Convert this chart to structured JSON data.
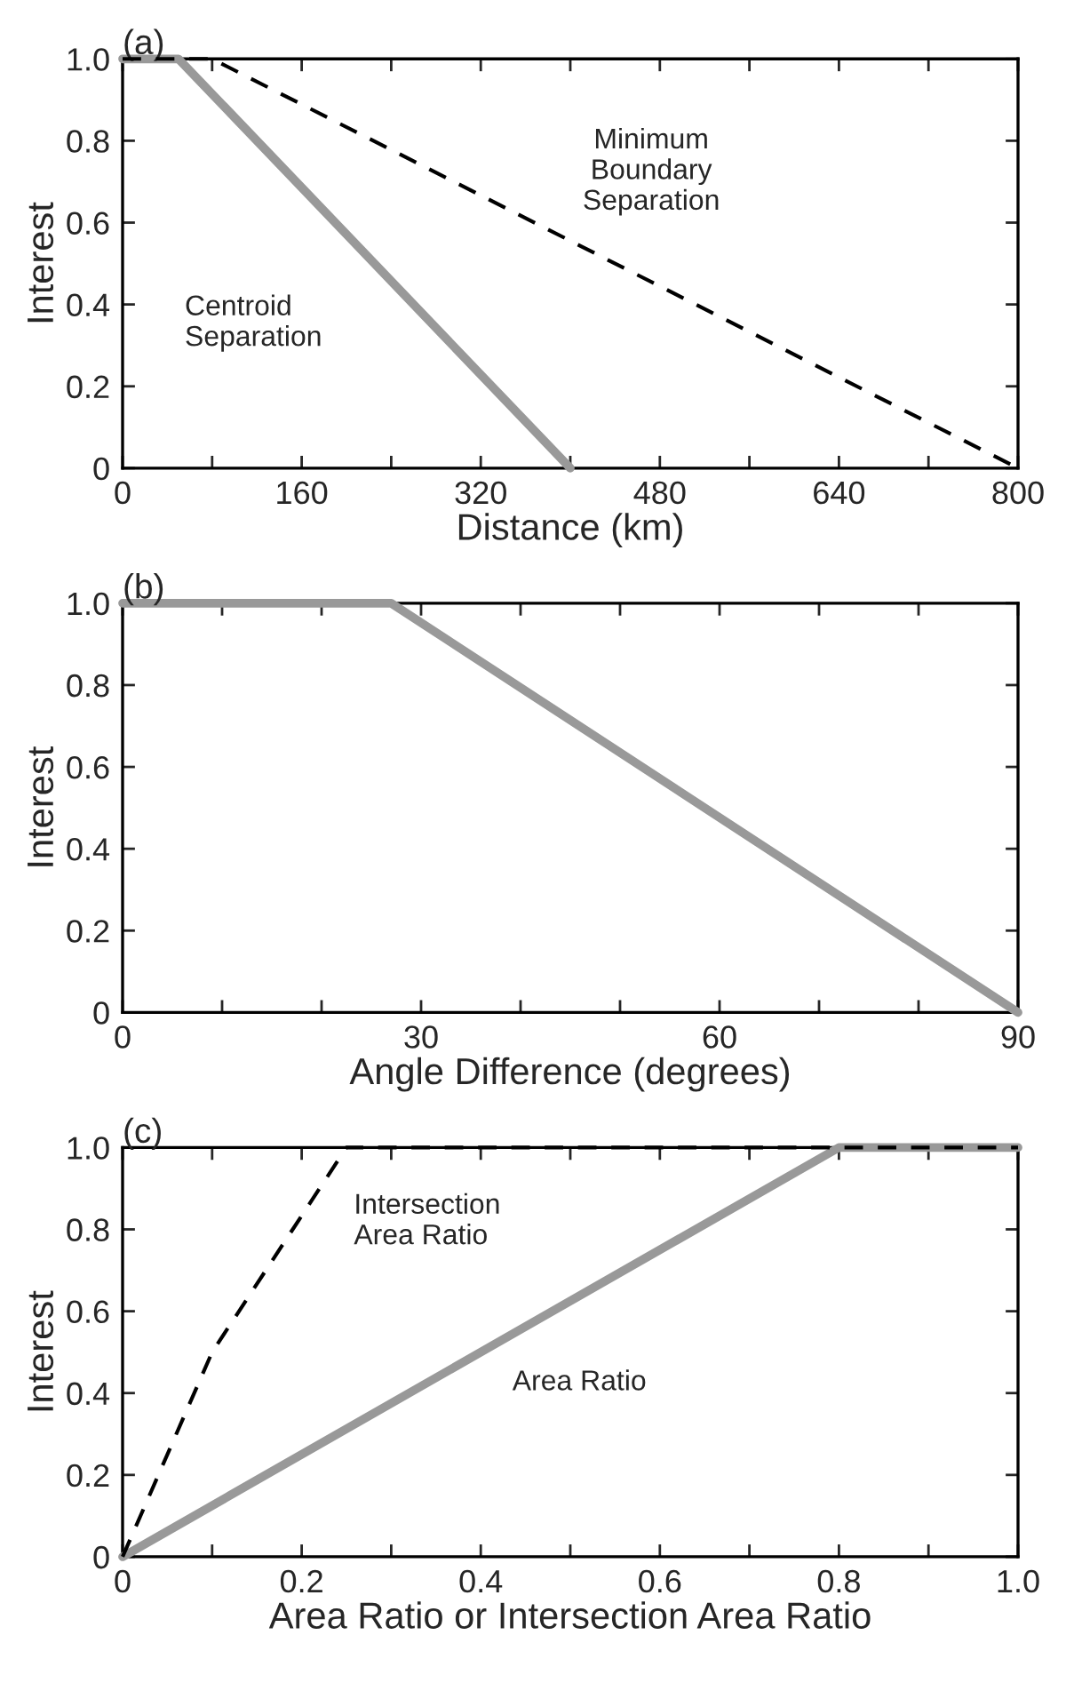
{
  "chart_data": [
    {
      "type": "line",
      "title": "(a)",
      "xlabel": "Distance (km)",
      "ylabel": "Interest",
      "xlim": [
        0,
        800
      ],
      "ylim": [
        0,
        1.0
      ],
      "xticks": [
        0,
        {
          "value": 80,
          "label": null
        },
        160,
        {
          "value": 240,
          "label": null
        },
        320,
        {
          "value": 400,
          "label": null
        },
        480,
        {
          "value": 560,
          "label": null
        },
        640,
        {
          "value": 720,
          "label": null
        },
        800
      ],
      "yticks": [
        0,
        {
          "value": 0.2,
          "label": "0.2"
        },
        {
          "value": 0.4,
          "label": "0.4"
        },
        {
          "value": 0.6,
          "label": "0.6"
        },
        {
          "value": 0.8,
          "label": "0.8"
        },
        {
          "value": 1.0,
          "label": "1.0"
        }
      ],
      "grid": false,
      "marker": "none",
      "series": [
        {
          "name": "Centroid\nSeparation",
          "color": "#999999",
          "line_style": "solid",
          "x": [
            0,
            50,
            400
          ],
          "values": [
            1.0,
            1.0,
            0
          ]
        },
        {
          "name": "Minimum\nBoundary\nSeparation",
          "color": "#000000",
          "line_style": "dashed",
          "x": [
            0,
            80,
            800
          ],
          "values": [
            1.0,
            1.0,
            0
          ]
        }
      ]
    },
    {
      "type": "line",
      "title": "(b)",
      "xlabel": "Angle Difference (degrees)",
      "ylabel": "Interest",
      "xlim": [
        0,
        90
      ],
      "ylim": [
        0,
        1.0
      ],
      "xticks": [
        0,
        {
          "value": 10,
          "label": null
        },
        {
          "value": 20,
          "label": null
        },
        30,
        {
          "value": 40,
          "label": null
        },
        {
          "value": 50,
          "label": null
        },
        60,
        {
          "value": 70,
          "label": null
        },
        {
          "value": 80,
          "label": null
        },
        90
      ],
      "yticks": [
        0,
        {
          "value": 0.2,
          "label": "0.2"
        },
        {
          "value": 0.4,
          "label": "0.4"
        },
        {
          "value": 0.6,
          "label": "0.6"
        },
        {
          "value": 0.8,
          "label": "0.8"
        },
        {
          "value": 1.0,
          "label": "1.0"
        }
      ],
      "grid": false,
      "marker": "none",
      "series": [
        {
          "color": "#999999",
          "line_style": "solid",
          "x": [
            0,
            27,
            90
          ],
          "values": [
            1.0,
            1.0,
            0
          ]
        }
      ]
    },
    {
      "type": "line",
      "title": "(c)",
      "xlabel": "Area Ratio or Intersection Area Ratio",
      "ylabel": "Interest",
      "xlim": [
        0,
        1.0
      ],
      "ylim": [
        0,
        1.0
      ],
      "xticks": [
        0,
        {
          "value": 0.1,
          "label": null
        },
        {
          "value": 0.2,
          "label": "0.2"
        },
        {
          "value": 0.3,
          "label": null
        },
        {
          "value": 0.4,
          "label": "0.4"
        },
        {
          "value": 0.5,
          "label": null
        },
        {
          "value": 0.6,
          "label": "0.6"
        },
        {
          "value": 0.7,
          "label": null
        },
        {
          "value": 0.8,
          "label": "0.8"
        },
        {
          "value": 0.9,
          "label": null
        },
        {
          "value": 1.0,
          "label": "1.0"
        }
      ],
      "yticks": [
        0,
        {
          "value": 0.2,
          "label": "0.2"
        },
        {
          "value": 0.4,
          "label": "0.4"
        },
        {
          "value": 0.6,
          "label": "0.6"
        },
        {
          "value": 0.8,
          "label": "0.8"
        },
        {
          "value": 1.0,
          "label": "1.0"
        }
      ],
      "grid": false,
      "marker": "none",
      "series": [
        {
          "name": "Area Ratio",
          "color": "#999999",
          "line_style": "solid",
          "x": [
            0,
            0.8,
            1.0
          ],
          "values": [
            0,
            1.0,
            1.0
          ]
        },
        {
          "name": "Intersection\nArea Ratio",
          "color": "#000000",
          "line_style": "dashed",
          "x": [
            0,
            0.1,
            0.25,
            1.0
          ],
          "values": [
            0,
            0.5,
            1.0,
            1.0
          ]
        }
      ]
    }
  ]
}
